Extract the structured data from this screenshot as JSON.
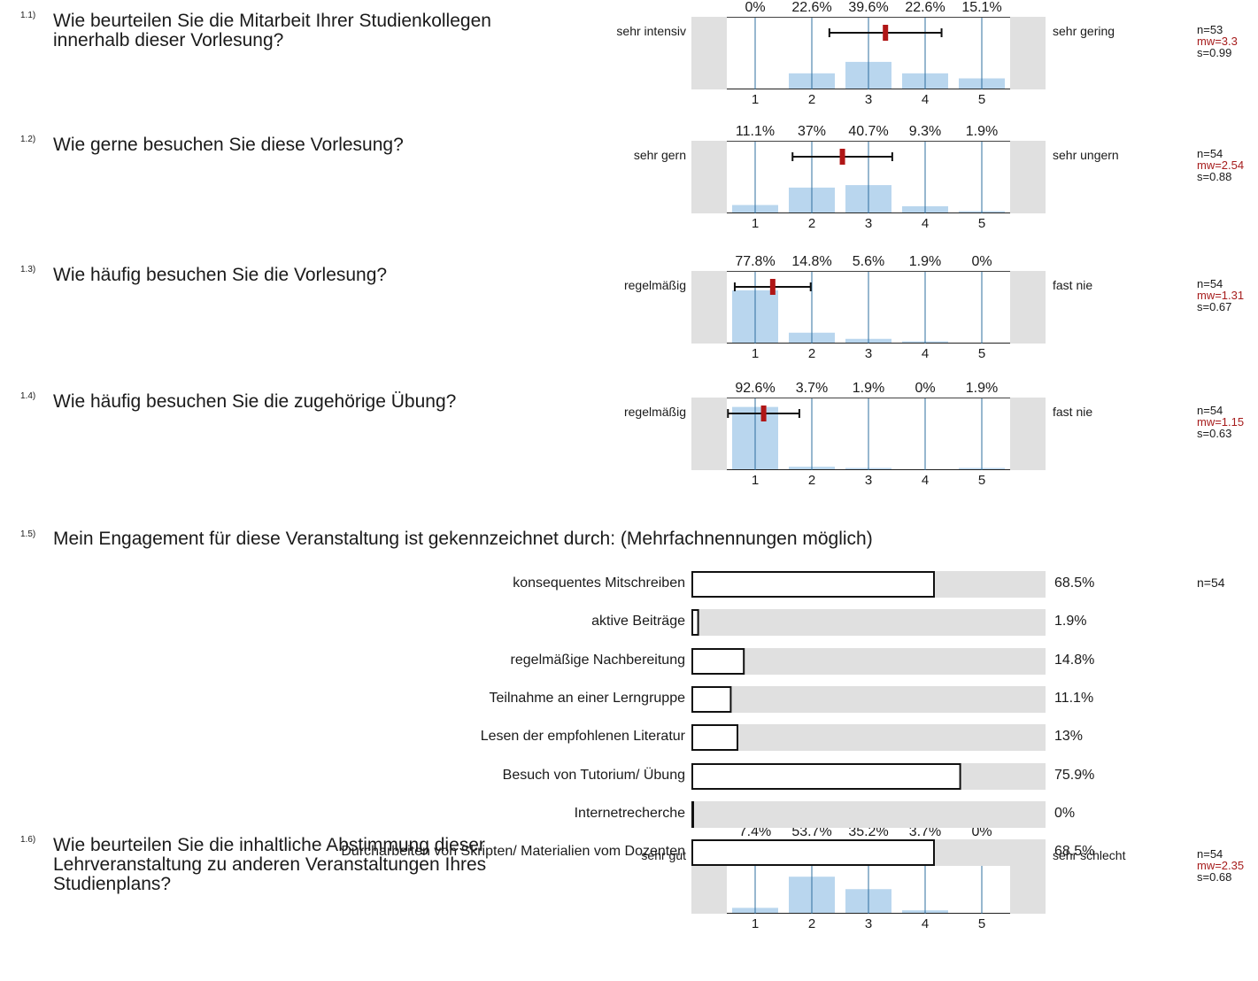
{
  "questions": [
    {
      "num": "1.1)",
      "text": "Wie beurteilen Sie die Mitarbeit Ihrer Studienkollegen innerhalb dieser Vorlesung?",
      "left": "sehr intensiv",
      "right": "sehr gering",
      "n": "n=53",
      "mw": "mw=3.3",
      "s": "s=0.99",
      "pcts": [
        "0%",
        "22.6%",
        "39.6%",
        "22.6%",
        "15.1%"
      ],
      "ticks": [
        "1",
        "2",
        "3",
        "4",
        "5"
      ]
    },
    {
      "num": "1.2)",
      "text": "Wie gerne besuchen Sie diese Vorlesung?",
      "left": "sehr gern",
      "right": "sehr ungern",
      "n": "n=54",
      "mw": "mw=2.54",
      "s": "s=0.88",
      "pcts": [
        "11.1%",
        "37%",
        "40.7%",
        "9.3%",
        "1.9%"
      ],
      "ticks": [
        "1",
        "2",
        "3",
        "4",
        "5"
      ]
    },
    {
      "num": "1.3)",
      "text": "Wie häufig besuchen Sie die Vorlesung?",
      "left": "regelmäßig",
      "right": "fast nie",
      "n": "n=54",
      "mw": "mw=1.31",
      "s": "s=0.67",
      "pcts": [
        "77.8%",
        "14.8%",
        "5.6%",
        "1.9%",
        "0%"
      ],
      "ticks": [
        "1",
        "2",
        "3",
        "4",
        "5"
      ]
    },
    {
      "num": "1.4)",
      "text": "Wie häufig besuchen Sie die zugehörige Übung?",
      "left": "regelmäßig",
      "right": "fast nie",
      "n": "n=54",
      "mw": "mw=1.15",
      "s": "s=0.63",
      "pcts": [
        "92.6%",
        "3.7%",
        "1.9%",
        "0%",
        "1.9%"
      ],
      "ticks": [
        "1",
        "2",
        "3",
        "4",
        "5"
      ]
    },
    {
      "num": "1.6)",
      "text": "Wie beurteilen Sie die inhaltliche Abstimmung dieser Lehrveranstaltung zu anderen Veranstaltungen Ihres Studienplans?",
      "left": "sehr gut",
      "right": "sehr schlecht",
      "n": "n=54",
      "mw": "mw=2.35",
      "s": "s=0.68",
      "pcts": [
        "7.4%",
        "53.7%",
        "35.2%",
        "3.7%",
        "0%"
      ],
      "ticks": [
        "1",
        "2",
        "3",
        "4",
        "5"
      ]
    }
  ],
  "multi": {
    "num": "1.5)",
    "text": "Mein Engagement für diese Veranstaltung ist gekennzeichnet durch: (Mehrfachnennungen möglich)",
    "n": "n=54",
    "labels": [
      "konsequentes Mitschreiben",
      "aktive Beiträge",
      "regelmäßige Nachbereitung",
      "Teilnahme an einer Lerngruppe",
      "Lesen der empfohlenen Literatur",
      "Besuch von Tutorium/ Übung",
      "Internetrecherche",
      "Durcharbeiten von Skripten/ Materialien vom Dozenten"
    ],
    "pct_labels": [
      "68.5%",
      "1.9%",
      "14.8%",
      "11.1%",
      "13%",
      "75.9%",
      "0%",
      "68.5%"
    ]
  },
  "chart_data": [
    {
      "type": "bar",
      "title": "Wie beurteilen Sie die Mitarbeit Ihrer Studienkollegen innerhalb dieser Vorlesung?",
      "categories": [
        "1",
        "2",
        "3",
        "4",
        "5"
      ],
      "values": [
        0,
        22.6,
        39.6,
        22.6,
        15.1
      ],
      "mean": 3.3,
      "sd": 0.99,
      "n": 53
    },
    {
      "type": "bar",
      "title": "Wie gerne besuchen Sie diese Vorlesung?",
      "categories": [
        "1",
        "2",
        "3",
        "4",
        "5"
      ],
      "values": [
        11.1,
        37,
        40.7,
        9.3,
        1.9
      ],
      "mean": 2.54,
      "sd": 0.88,
      "n": 54
    },
    {
      "type": "bar",
      "title": "Wie häufig besuchen Sie die Vorlesung?",
      "categories": [
        "1",
        "2",
        "3",
        "4",
        "5"
      ],
      "values": [
        77.8,
        14.8,
        5.6,
        1.9,
        0
      ],
      "mean": 1.31,
      "sd": 0.67,
      "n": 54
    },
    {
      "type": "bar",
      "title": "Wie häufig besuchen Sie die zugehörige Übung?",
      "categories": [
        "1",
        "2",
        "3",
        "4",
        "5"
      ],
      "values": [
        92.6,
        3.7,
        1.9,
        0,
        1.9
      ],
      "mean": 1.15,
      "sd": 0.63,
      "n": 54
    },
    {
      "type": "bar",
      "title": "Mein Engagement für diese Veranstaltung ist gekennzeichnet durch: (Mehrfachnennungen möglich)",
      "categories": [
        "konsequentes Mitschreiben",
        "aktive Beiträge",
        "regelmäßige Nachbereitung",
        "Teilnahme an einer Lerngruppe",
        "Lesen der empfohlenen Literatur",
        "Besuch von Tutorium/ Übung",
        "Internetrecherche",
        "Durcharbeiten von Skripten/ Materialien vom Dozenten"
      ],
      "values": [
        68.5,
        1.9,
        14.8,
        11.1,
        13,
        75.9,
        0,
        68.5
      ],
      "ylim": [
        0,
        100
      ],
      "n": 54
    },
    {
      "type": "bar",
      "title": "Wie beurteilen Sie die inhaltliche Abstimmung dieser Lehrveranstaltung zu anderen Veranstaltungen Ihres Studienplans?",
      "categories": [
        "1",
        "2",
        "3",
        "4",
        "5"
      ],
      "values": [
        7.4,
        53.7,
        35.2,
        3.7,
        0
      ],
      "mean": 2.35,
      "sd": 0.68,
      "n": 54
    }
  ],
  "colors": {
    "bar_fill": "#b9d6ee",
    "gridline": "#2f6f9f",
    "mean_marker": "#b01616",
    "stats_red": "#a61c1c",
    "panel_gray": "#e0e0e0"
  }
}
